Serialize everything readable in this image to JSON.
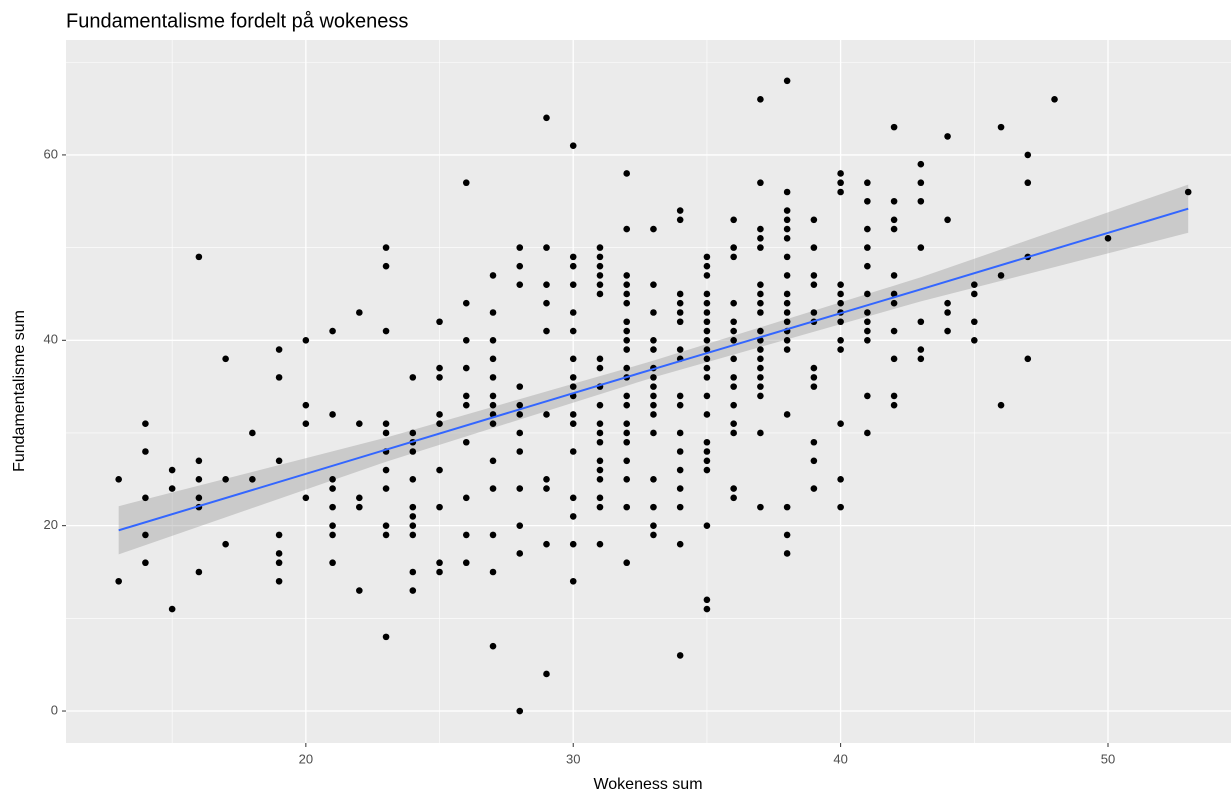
{
  "chart_data": {
    "type": "scatter",
    "title": "Fundamentalisme fordelt på wokeness",
    "x_label": "Wokeness sum",
    "y_label": "Fundamentalisme sum",
    "xlim": [
      11.03,
      54.6
    ],
    "ylim": [
      -3.45,
      72.4
    ],
    "xticks": [
      20,
      30,
      40,
      50
    ],
    "yticks": [
      0,
      20,
      40,
      60
    ],
    "grid": true,
    "points": {
      "color": "#000000",
      "x": [
        13,
        13,
        14,
        14,
        14,
        14,
        14,
        15,
        15,
        15,
        16,
        16,
        16,
        16,
        16,
        16,
        17,
        17,
        17,
        18,
        18,
        19,
        19,
        19,
        19,
        19,
        19,
        19,
        20,
        20,
        20,
        20,
        21,
        21,
        21,
        21,
        21,
        21,
        21,
        21,
        22,
        22,
        22,
        22,
        22,
        23,
        23,
        23,
        23,
        23,
        23,
        23,
        23,
        23,
        23,
        23,
        24,
        24,
        24,
        24,
        24,
        24,
        24,
        24,
        24,
        24,
        24,
        25,
        25,
        25,
        25,
        25,
        25,
        25,
        25,
        25,
        26,
        26,
        26,
        26,
        26,
        26,
        26,
        26,
        26,
        26,
        27,
        27,
        27,
        27,
        27,
        27,
        27,
        27,
        27,
        27,
        27,
        27,
        27,
        27,
        28,
        28,
        28,
        28,
        28,
        28,
        28,
        28,
        28,
        28,
        28,
        28,
        29,
        29,
        29,
        29,
        29,
        29,
        29,
        29,
        29,
        29,
        30,
        30,
        30,
        30,
        30,
        30,
        30,
        30,
        30,
        30,
        30,
        30,
        30,
        30,
        30,
        30,
        30,
        31,
        31,
        31,
        31,
        31,
        31,
        31,
        31,
        31,
        31,
        31,
        31,
        31,
        31,
        31,
        31,
        31,
        31,
        31,
        32,
        32,
        32,
        32,
        32,
        32,
        32,
        32,
        32,
        32,
        32,
        32,
        32,
        32,
        32,
        32,
        32,
        32,
        32,
        32,
        32,
        33,
        33,
        33,
        33,
        33,
        33,
        33,
        33,
        33,
        33,
        33,
        33,
        33,
        33,
        33,
        33,
        34,
        34,
        34,
        34,
        34,
        34,
        34,
        34,
        34,
        34,
        34,
        34,
        34,
        34,
        34,
        34,
        34,
        35,
        35,
        35,
        35,
        35,
        35,
        35,
        35,
        35,
        35,
        35,
        35,
        35,
        35,
        35,
        35,
        35,
        35,
        35,
        35,
        35,
        35,
        36,
        36,
        36,
        36,
        36,
        36,
        36,
        36,
        36,
        36,
        36,
        36,
        36,
        36,
        36,
        37,
        37,
        37,
        37,
        37,
        37,
        37,
        37,
        37,
        37,
        37,
        37,
        37,
        37,
        37,
        37,
        37,
        37,
        37,
        38,
        38,
        38,
        38,
        38,
        38,
        38,
        38,
        38,
        38,
        38,
        38,
        38,
        38,
        38,
        38,
        38,
        38,
        38,
        39,
        39,
        39,
        39,
        39,
        39,
        39,
        39,
        39,
        39,
        39,
        39,
        40,
        40,
        40,
        40,
        40,
        40,
        40,
        40,
        40,
        40,
        40,
        40,
        40,
        41,
        41,
        41,
        41,
        41,
        41,
        41,
        41,
        41,
        41,
        41,
        41,
        42,
        42,
        42,
        42,
        42,
        42,
        42,
        42,
        42,
        42,
        42,
        43,
        43,
        43,
        43,
        43,
        43,
        43,
        44,
        44,
        44,
        44,
        44,
        45,
        45,
        45,
        45,
        46,
        46,
        46,
        47,
        47,
        47,
        47,
        48,
        50,
        53
      ],
      "y": [
        25,
        14,
        31,
        28,
        23,
        19,
        16,
        26,
        24,
        11,
        49,
        27,
        25,
        23,
        22,
        15,
        38,
        25,
        18,
        30,
        25,
        39,
        36,
        27,
        19,
        17,
        16,
        14,
        40,
        33,
        31,
        23,
        41,
        32,
        25,
        24,
        22,
        20,
        19,
        16,
        43,
        31,
        23,
        22,
        13,
        50,
        48,
        41,
        31,
        30,
        28,
        26,
        24,
        20,
        19,
        8,
        36,
        30,
        29,
        28,
        25,
        22,
        21,
        20,
        19,
        15,
        13,
        42,
        37,
        36,
        32,
        31,
        26,
        22,
        16,
        15,
        57,
        44,
        40,
        37,
        34,
        33,
        29,
        23,
        19,
        16,
        47,
        43,
        40,
        38,
        36,
        34,
        33,
        32,
        31,
        27,
        24,
        19,
        15,
        7,
        50,
        48,
        46,
        35,
        33,
        32,
        30,
        28,
        24,
        20,
        17,
        0,
        64,
        50,
        46,
        44,
        41,
        32,
        25,
        24,
        18,
        4,
        61,
        49,
        48,
        46,
        43,
        41,
        38,
        36,
        35,
        34,
        32,
        31,
        28,
        23,
        21,
        18,
        14,
        50,
        49,
        48,
        47,
        46,
        45,
        38,
        37,
        35,
        33,
        31,
        30,
        29,
        27,
        26,
        25,
        23,
        22,
        18,
        58,
        52,
        47,
        46,
        45,
        44,
        42,
        41,
        40,
        39,
        37,
        36,
        34,
        33,
        31,
        30,
        29,
        27,
        25,
        22,
        16,
        52,
        46,
        43,
        40,
        39,
        37,
        36,
        35,
        34,
        33,
        32,
        30,
        25,
        22,
        20,
        19,
        54,
        53,
        45,
        44,
        43,
        42,
        39,
        38,
        34,
        33,
        30,
        28,
        26,
        24,
        22,
        18,
        6,
        49,
        48,
        47,
        45,
        44,
        43,
        42,
        41,
        40,
        39,
        38,
        37,
        36,
        34,
        32,
        29,
        28,
        27,
        26,
        20,
        12,
        11,
        53,
        50,
        49,
        44,
        42,
        41,
        40,
        38,
        36,
        35,
        33,
        31,
        30,
        24,
        23,
        66,
        57,
        52,
        51,
        50,
        46,
        45,
        44,
        43,
        41,
        40,
        39,
        38,
        37,
        36,
        35,
        34,
        30,
        22,
        68,
        56,
        54,
        53,
        52,
        51,
        49,
        47,
        45,
        44,
        43,
        42,
        41,
        40,
        39,
        32,
        22,
        19,
        17,
        53,
        50,
        47,
        46,
        43,
        42,
        37,
        36,
        35,
        29,
        27,
        24,
        58,
        57,
        56,
        46,
        45,
        44,
        43,
        42,
        40,
        39,
        31,
        25,
        22,
        57,
        55,
        52,
        50,
        48,
        45,
        43,
        42,
        41,
        40,
        34,
        30,
        63,
        55,
        53,
        52,
        47,
        45,
        44,
        41,
        38,
        34,
        33,
        59,
        57,
        55,
        50,
        42,
        39,
        38,
        62,
        53,
        44,
        43,
        41,
        46,
        45,
        42,
        40,
        63,
        47,
        33,
        60,
        57,
        49,
        38,
        66,
        51,
        56
      ]
    },
    "fit": {
      "color": "#3366ff",
      "band_color": "#999999",
      "x": [
        13,
        23,
        33,
        43,
        53
      ],
      "values": [
        19.5,
        28.2,
        36.9,
        45.5,
        54.2
      ],
      "lower": [
        16.9,
        26.9,
        36.0,
        44.2,
        51.6
      ],
      "upper": [
        22.1,
        29.5,
        37.8,
        46.8,
        56.8
      ]
    }
  }
}
